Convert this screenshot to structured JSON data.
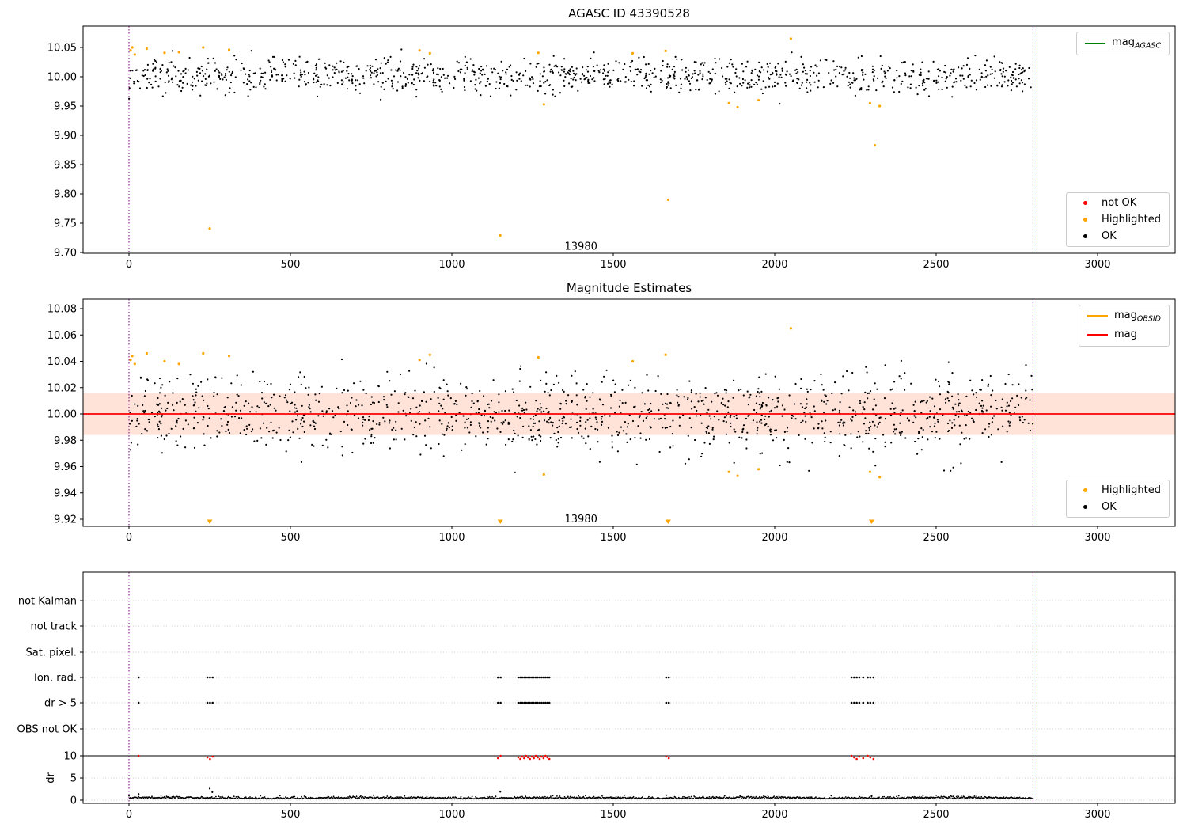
{
  "chart_data": [
    {
      "type": "scatter",
      "title": "AGASC ID 43390528",
      "xticks": [
        0,
        500,
        1000,
        1500,
        2000,
        2500,
        3000
      ],
      "yticks": [
        9.7,
        9.75,
        9.8,
        9.85,
        9.9,
        9.95,
        10.0,
        10.05
      ],
      "ytick_labels": [
        "9.70",
        "9.75",
        "9.80",
        "9.85",
        "9.90",
        "9.95",
        "10.00",
        "10.05"
      ],
      "xlim": [
        -142,
        3240
      ],
      "ylim": [
        9.699,
        10.087
      ],
      "vlines": [
        0,
        2800
      ],
      "annotation": {
        "text": "13980",
        "x": 1400,
        "y": 9.705
      },
      "legend_line": {
        "prefix": "mag",
        "sub": "AGASC",
        "color": "#008000"
      },
      "legend_markers": [
        {
          "label": "not OK",
          "color": "#ff0000"
        },
        {
          "label": "Highlighted",
          "color": "#ffa500"
        },
        {
          "label": "OK",
          "color": "#000000"
        }
      ],
      "ok_cloud": {
        "n": 1150,
        "x_min": 0,
        "x_max": 2800,
        "y_mean": 10.001,
        "y_std": 0.015,
        "y_clip_min": 9.952,
        "y_clip_max": 10.048,
        "seed": 42
      },
      "highlighted": [
        [
          5,
          10.045
        ],
        [
          10,
          10.05
        ],
        [
          18,
          10.038
        ],
        [
          55,
          10.048
        ],
        [
          110,
          10.041
        ],
        [
          155,
          10.042
        ],
        [
          230,
          10.05
        ],
        [
          250,
          9.741
        ],
        [
          310,
          10.046
        ],
        [
          900,
          10.045
        ],
        [
          932,
          10.04
        ],
        [
          1150,
          9.729
        ],
        [
          1268,
          10.041
        ],
        [
          1285,
          9.953
        ],
        [
          1560,
          10.04
        ],
        [
          1662,
          10.044
        ],
        [
          1670,
          9.79
        ],
        [
          1858,
          9.955
        ],
        [
          1885,
          9.948
        ],
        [
          1950,
          9.96
        ],
        [
          2050,
          10.065
        ],
        [
          2295,
          9.955
        ],
        [
          2310,
          9.883
        ],
        [
          2325,
          9.95
        ]
      ]
    },
    {
      "type": "scatter",
      "title": "Magnitude Estimates",
      "xticks": [
        0,
        500,
        1000,
        1500,
        2000,
        2500,
        3000
      ],
      "yticks": [
        9.92,
        9.94,
        9.96,
        9.98,
        10.0,
        10.02,
        10.04,
        10.06,
        10.08
      ],
      "ytick_labels": [
        "9.92",
        "9.94",
        "9.96",
        "9.98",
        "10.00",
        "10.02",
        "10.04",
        "10.06",
        "10.08"
      ],
      "xlim": [
        -142,
        3240
      ],
      "ylim": [
        9.9146,
        10.0872
      ],
      "vlines": [
        0,
        2800
      ],
      "annotation": {
        "text": "13980",
        "x": 1400,
        "y": 9.9176
      },
      "mag_line": {
        "y": 10.0,
        "color": "#ff0000"
      },
      "band": {
        "y_min": 9.984,
        "y_max": 10.016,
        "color": "#ff7f50",
        "opacity": 0.22
      },
      "legend_lines": [
        {
          "prefix": "mag",
          "sub": "OBSID",
          "color": "#ffa500"
        },
        {
          "prefix": "mag",
          "sub": "",
          "color": "#ff0000"
        }
      ],
      "legend_markers": [
        {
          "label": "Highlighted",
          "color": "#ffa500"
        },
        {
          "label": "OK",
          "color": "#000000"
        }
      ],
      "ok_cloud": {
        "n": 1300,
        "x_min": 0,
        "x_max": 2800,
        "y_mean": 10.0,
        "y_std": 0.015,
        "y_clip_min": 9.955,
        "y_clip_max": 10.042,
        "seed": 77
      },
      "highlighted": [
        [
          5,
          10.041
        ],
        [
          10,
          10.044
        ],
        [
          18,
          10.038
        ],
        [
          55,
          10.046
        ],
        [
          110,
          10.04
        ],
        [
          155,
          10.038
        ],
        [
          230,
          10.046
        ],
        [
          310,
          10.044
        ],
        [
          900,
          10.041
        ],
        [
          932,
          10.045
        ],
        [
          1268,
          10.043
        ],
        [
          1285,
          9.954
        ],
        [
          1560,
          10.04
        ],
        [
          1662,
          10.045
        ],
        [
          1858,
          9.956
        ],
        [
          1885,
          9.953
        ],
        [
          1950,
          9.958
        ],
        [
          2050,
          10.065
        ],
        [
          2295,
          9.956
        ],
        [
          2325,
          9.952
        ]
      ],
      "clipped_low_x": [
        250,
        1150,
        1670,
        2300
      ]
    },
    {
      "type": "scatter",
      "categories": [
        "not Kalman",
        "not track",
        "Sat. pixel.",
        "Ion. rad.",
        "dr > 5",
        "OBS not OK"
      ],
      "dr_axis": {
        "label": "dr",
        "ticks": [
          0,
          5,
          10
        ]
      },
      "xticks": [
        0,
        500,
        1000,
        1500,
        2000,
        2500,
        3000
      ],
      "vlines": [
        0,
        2800
      ],
      "dr_threshold_line": 10,
      "ion_rad_x": [
        30,
        243,
        251,
        259,
        1143,
        1151,
        1206,
        1212,
        1218,
        1224,
        1230,
        1236,
        1242,
        1248,
        1254,
        1260,
        1266,
        1272,
        1278,
        1284,
        1290,
        1296,
        1302,
        1664,
        1672,
        2238,
        2246,
        2254,
        2262,
        2274,
        2288,
        2296,
        2306
      ],
      "dr_gt5_x": [
        30,
        243,
        251,
        259,
        1143,
        1151,
        1206,
        1212,
        1218,
        1224,
        1230,
        1236,
        1242,
        1248,
        1254,
        1260,
        1266,
        1272,
        1278,
        1284,
        1290,
        1296,
        1302,
        1664,
        1672,
        2238,
        2246,
        2254,
        2262,
        2274,
        2288,
        2296,
        2306
      ],
      "red_dr10_x": [
        30,
        243,
        251,
        259,
        1143,
        1151,
        1206,
        1212,
        1218,
        1224,
        1230,
        1236,
        1242,
        1248,
        1254,
        1260,
        1266,
        1272,
        1278,
        1284,
        1290,
        1296,
        1302,
        1664,
        1672,
        2238,
        2246,
        2254,
        2262,
        2274,
        2288,
        2296,
        2306
      ],
      "dr_trace": {
        "n": 1300,
        "x_min": 0,
        "x_max": 2800,
        "base": 0.35,
        "noise": 0.22,
        "seed": 7,
        "spikes": [
          [
            30,
            1.4
          ],
          [
            250,
            2.6
          ],
          [
            258,
            1.8
          ],
          [
            1150,
            1.9
          ],
          [
            1664,
            1.1
          ],
          [
            2300,
            1.0
          ]
        ]
      }
    }
  ],
  "colors": {
    "ok": "#000000",
    "highlighted": "#ffa500",
    "not_ok": "#ff0000",
    "vline": "#800080",
    "grid": "#bbbbbb",
    "axis": "#000000"
  }
}
